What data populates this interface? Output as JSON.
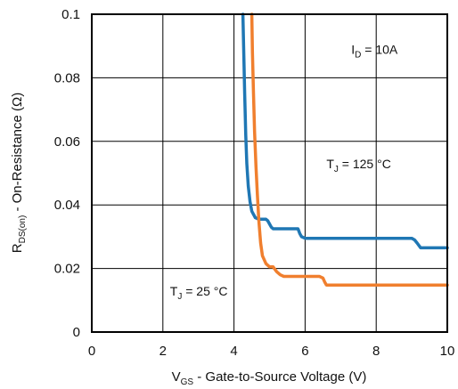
{
  "chart_data": {
    "type": "line",
    "title": "",
    "xlabel": {
      "main": "V",
      "sub": "GS",
      "rest": " - Gate-to-Source Voltage (V)"
    },
    "ylabel": {
      "main": "R",
      "sub": "DS(on)",
      "rest": " - On-Resistance (Ω)"
    },
    "xlim": [
      0,
      10
    ],
    "ylim": [
      0,
      0.1
    ],
    "x_ticks": [
      "0",
      "2",
      "4",
      "6",
      "8",
      "10"
    ],
    "x_tick_values": [
      0,
      2,
      4,
      6,
      8,
      10
    ],
    "y_ticks": [
      "0",
      "0.02",
      "0.04",
      "0.06",
      "0.08",
      "0.1"
    ],
    "y_tick_values": [
      0,
      0.02,
      0.04,
      0.06,
      0.08,
      0.1
    ],
    "grid": true,
    "legend": "none",
    "annotations": [
      {
        "main": "I",
        "sub": "D",
        "rest": " = 10A",
        "x": 7.3,
        "y": 0.0875
      },
      {
        "main": "T",
        "sub": "J",
        "rest": " = 125 °C",
        "x": 6.6,
        "y": 0.0515
      },
      {
        "main": "T",
        "sub": "J",
        "rest": " = 25 °C",
        "x": 2.2,
        "y": 0.0115
      }
    ],
    "series": [
      {
        "name": "",
        "color": "#1F77B4",
        "x": [
          4.25,
          4.27,
          4.3,
          4.33,
          4.36,
          4.4,
          4.45,
          4.5,
          4.6,
          4.7,
          4.8,
          4.9,
          4.95,
          5.0,
          5.05,
          5.1,
          5.2,
          5.4,
          5.6,
          5.8,
          5.85,
          5.9,
          6.0,
          6.5,
          7.0,
          8.0,
          9.0,
          9.08,
          9.15,
          9.25,
          10.0
        ],
        "y": [
          0.1,
          0.09,
          0.075,
          0.062,
          0.053,
          0.046,
          0.041,
          0.038,
          0.036,
          0.0355,
          0.0355,
          0.0355,
          0.035,
          0.034,
          0.033,
          0.0325,
          0.0325,
          0.0325,
          0.0325,
          0.0325,
          0.031,
          0.03,
          0.0295,
          0.0295,
          0.0295,
          0.0295,
          0.0295,
          0.029,
          0.028,
          0.0265,
          0.0265
        ]
      },
      {
        "name": "",
        "color": "#F07F2E",
        "x": [
          4.5,
          4.52,
          4.55,
          4.58,
          4.62,
          4.66,
          4.7,
          4.75,
          4.8,
          4.9,
          5.0,
          5.05,
          5.1,
          5.2,
          5.3,
          5.4,
          5.5,
          6.0,
          6.4,
          6.5,
          6.55,
          6.6,
          7.0,
          8.0,
          9.0,
          10.0
        ],
        "y": [
          0.1,
          0.088,
          0.075,
          0.063,
          0.052,
          0.043,
          0.035,
          0.028,
          0.024,
          0.0215,
          0.0205,
          0.0205,
          0.0205,
          0.019,
          0.018,
          0.0175,
          0.0175,
          0.0175,
          0.0175,
          0.017,
          0.0158,
          0.0148,
          0.0148,
          0.0148,
          0.0148,
          0.0148
        ]
      }
    ]
  }
}
